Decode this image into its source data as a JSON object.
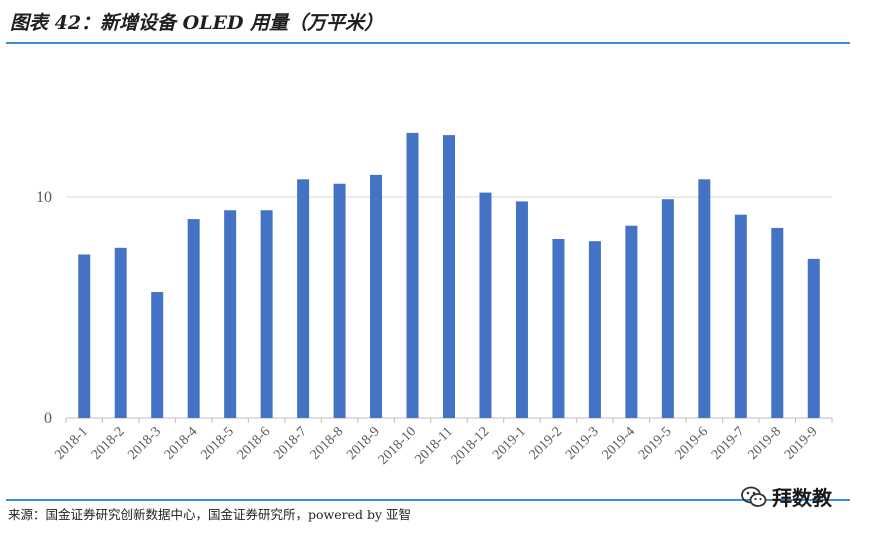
{
  "title": "图表 42：新增设备 OLED 用量（万平米）",
  "source": "来源：国金证券研究创新数据中心，国金证券研究所，powered by 亚智",
  "watermark": {
    "text": "拜数教",
    "icon": "wechat-icon"
  },
  "colors": {
    "bar": "#4472c4",
    "rule": "#3a8fd6",
    "grid": "#d9d9d9",
    "axis": "#bfbfbf"
  },
  "chart_data": {
    "type": "bar",
    "categories": [
      "2018-1",
      "2018-2",
      "2018-3",
      "2018-4",
      "2018-5",
      "2018-6",
      "2018-7",
      "2018-8",
      "2018-9",
      "2018-10",
      "2018-11",
      "2018-12",
      "2019-1",
      "2019-2",
      "2019-3",
      "2019-4",
      "2019-5",
      "2019-6",
      "2019-7",
      "2019-8",
      "2019-9"
    ],
    "values": [
      7.4,
      7.7,
      5.7,
      9.0,
      9.4,
      9.4,
      10.8,
      10.6,
      11.0,
      12.9,
      12.8,
      10.2,
      9.8,
      8.1,
      8.0,
      8.7,
      9.9,
      10.8,
      9.2,
      8.6,
      7.2
    ],
    "yticks": [
      0,
      10
    ],
    "ylim": [
      0,
      14
    ],
    "grid": true,
    "xlabel": "",
    "ylabel": ""
  }
}
